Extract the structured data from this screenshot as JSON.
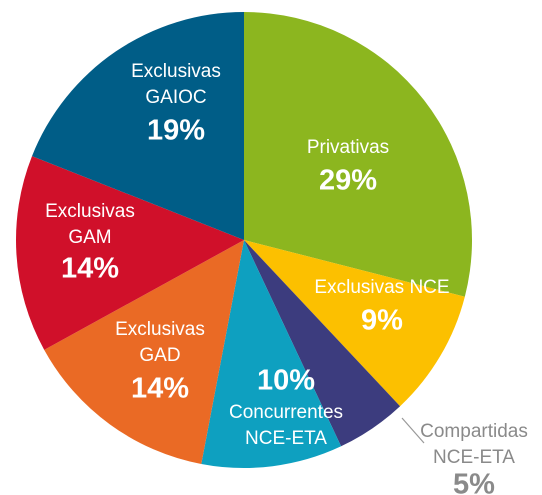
{
  "chart_data": {
    "type": "pie",
    "categories": [
      [
        "Privativas"
      ],
      [
        "Exclusivas NCE"
      ],
      [
        "Compartidas",
        "NCE-ETA"
      ],
      [
        "Concurrentes",
        "NCE-ETA"
      ],
      [
        "Exclusivas",
        "GAD"
      ],
      [
        "Exclusivas",
        "GAM"
      ],
      [
        "Exclusivas",
        "GAIOC"
      ]
    ],
    "values": [
      29,
      9,
      5,
      10,
      14,
      14,
      19
    ],
    "value_labels": [
      "29%",
      "9%",
      "5%",
      "10%",
      "14%",
      "14%",
      "19%"
    ],
    "colors": [
      "#8cb61f",
      "#fcc000",
      "#3c3c7e",
      "#0ea0c0",
      "#ea6a25",
      "#d0102a",
      "#005d87"
    ]
  }
}
